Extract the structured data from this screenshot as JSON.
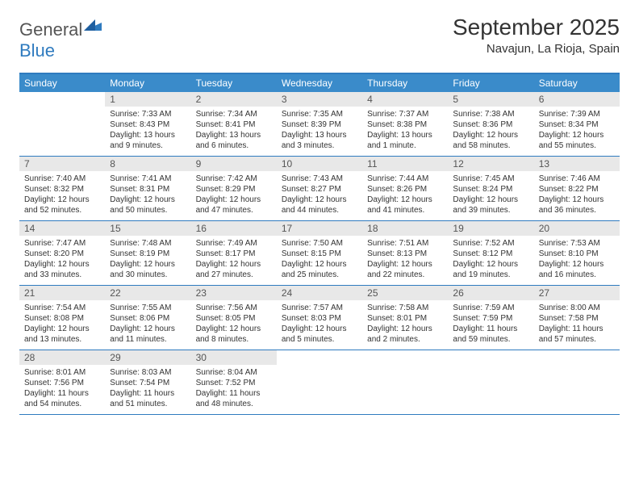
{
  "logo": {
    "text_dark": "General",
    "text_blue": "Blue"
  },
  "title": "September 2025",
  "location": "Navajun, La Rioja, Spain",
  "colors": {
    "header_bar": "#3a8bca",
    "top_border": "#2f7bbf",
    "daynum_bg": "#e8e8e8",
    "week_border": "#2f7bbf"
  },
  "day_headers": [
    "Sunday",
    "Monday",
    "Tuesday",
    "Wednesday",
    "Thursday",
    "Friday",
    "Saturday"
  ],
  "weeks": [
    [
      {
        "n": "",
        "sr": "",
        "ss": "",
        "dl": ""
      },
      {
        "n": "1",
        "sr": "Sunrise: 7:33 AM",
        "ss": "Sunset: 8:43 PM",
        "dl": "Daylight: 13 hours and 9 minutes."
      },
      {
        "n": "2",
        "sr": "Sunrise: 7:34 AM",
        "ss": "Sunset: 8:41 PM",
        "dl": "Daylight: 13 hours and 6 minutes."
      },
      {
        "n": "3",
        "sr": "Sunrise: 7:35 AM",
        "ss": "Sunset: 8:39 PM",
        "dl": "Daylight: 13 hours and 3 minutes."
      },
      {
        "n": "4",
        "sr": "Sunrise: 7:37 AM",
        "ss": "Sunset: 8:38 PM",
        "dl": "Daylight: 13 hours and 1 minute."
      },
      {
        "n": "5",
        "sr": "Sunrise: 7:38 AM",
        "ss": "Sunset: 8:36 PM",
        "dl": "Daylight: 12 hours and 58 minutes."
      },
      {
        "n": "6",
        "sr": "Sunrise: 7:39 AM",
        "ss": "Sunset: 8:34 PM",
        "dl": "Daylight: 12 hours and 55 minutes."
      }
    ],
    [
      {
        "n": "7",
        "sr": "Sunrise: 7:40 AM",
        "ss": "Sunset: 8:32 PM",
        "dl": "Daylight: 12 hours and 52 minutes."
      },
      {
        "n": "8",
        "sr": "Sunrise: 7:41 AM",
        "ss": "Sunset: 8:31 PM",
        "dl": "Daylight: 12 hours and 50 minutes."
      },
      {
        "n": "9",
        "sr": "Sunrise: 7:42 AM",
        "ss": "Sunset: 8:29 PM",
        "dl": "Daylight: 12 hours and 47 minutes."
      },
      {
        "n": "10",
        "sr": "Sunrise: 7:43 AM",
        "ss": "Sunset: 8:27 PM",
        "dl": "Daylight: 12 hours and 44 minutes."
      },
      {
        "n": "11",
        "sr": "Sunrise: 7:44 AM",
        "ss": "Sunset: 8:26 PM",
        "dl": "Daylight: 12 hours and 41 minutes."
      },
      {
        "n": "12",
        "sr": "Sunrise: 7:45 AM",
        "ss": "Sunset: 8:24 PM",
        "dl": "Daylight: 12 hours and 39 minutes."
      },
      {
        "n": "13",
        "sr": "Sunrise: 7:46 AM",
        "ss": "Sunset: 8:22 PM",
        "dl": "Daylight: 12 hours and 36 minutes."
      }
    ],
    [
      {
        "n": "14",
        "sr": "Sunrise: 7:47 AM",
        "ss": "Sunset: 8:20 PM",
        "dl": "Daylight: 12 hours and 33 minutes."
      },
      {
        "n": "15",
        "sr": "Sunrise: 7:48 AM",
        "ss": "Sunset: 8:19 PM",
        "dl": "Daylight: 12 hours and 30 minutes."
      },
      {
        "n": "16",
        "sr": "Sunrise: 7:49 AM",
        "ss": "Sunset: 8:17 PM",
        "dl": "Daylight: 12 hours and 27 minutes."
      },
      {
        "n": "17",
        "sr": "Sunrise: 7:50 AM",
        "ss": "Sunset: 8:15 PM",
        "dl": "Daylight: 12 hours and 25 minutes."
      },
      {
        "n": "18",
        "sr": "Sunrise: 7:51 AM",
        "ss": "Sunset: 8:13 PM",
        "dl": "Daylight: 12 hours and 22 minutes."
      },
      {
        "n": "19",
        "sr": "Sunrise: 7:52 AM",
        "ss": "Sunset: 8:12 PM",
        "dl": "Daylight: 12 hours and 19 minutes."
      },
      {
        "n": "20",
        "sr": "Sunrise: 7:53 AM",
        "ss": "Sunset: 8:10 PM",
        "dl": "Daylight: 12 hours and 16 minutes."
      }
    ],
    [
      {
        "n": "21",
        "sr": "Sunrise: 7:54 AM",
        "ss": "Sunset: 8:08 PM",
        "dl": "Daylight: 12 hours and 13 minutes."
      },
      {
        "n": "22",
        "sr": "Sunrise: 7:55 AM",
        "ss": "Sunset: 8:06 PM",
        "dl": "Daylight: 12 hours and 11 minutes."
      },
      {
        "n": "23",
        "sr": "Sunrise: 7:56 AM",
        "ss": "Sunset: 8:05 PM",
        "dl": "Daylight: 12 hours and 8 minutes."
      },
      {
        "n": "24",
        "sr": "Sunrise: 7:57 AM",
        "ss": "Sunset: 8:03 PM",
        "dl": "Daylight: 12 hours and 5 minutes."
      },
      {
        "n": "25",
        "sr": "Sunrise: 7:58 AM",
        "ss": "Sunset: 8:01 PM",
        "dl": "Daylight: 12 hours and 2 minutes."
      },
      {
        "n": "26",
        "sr": "Sunrise: 7:59 AM",
        "ss": "Sunset: 7:59 PM",
        "dl": "Daylight: 11 hours and 59 minutes."
      },
      {
        "n": "27",
        "sr": "Sunrise: 8:00 AM",
        "ss": "Sunset: 7:58 PM",
        "dl": "Daylight: 11 hours and 57 minutes."
      }
    ],
    [
      {
        "n": "28",
        "sr": "Sunrise: 8:01 AM",
        "ss": "Sunset: 7:56 PM",
        "dl": "Daylight: 11 hours and 54 minutes."
      },
      {
        "n": "29",
        "sr": "Sunrise: 8:03 AM",
        "ss": "Sunset: 7:54 PM",
        "dl": "Daylight: 11 hours and 51 minutes."
      },
      {
        "n": "30",
        "sr": "Sunrise: 8:04 AM",
        "ss": "Sunset: 7:52 PM",
        "dl": "Daylight: 11 hours and 48 minutes."
      },
      {
        "n": "",
        "sr": "",
        "ss": "",
        "dl": ""
      },
      {
        "n": "",
        "sr": "",
        "ss": "",
        "dl": ""
      },
      {
        "n": "",
        "sr": "",
        "ss": "",
        "dl": ""
      },
      {
        "n": "",
        "sr": "",
        "ss": "",
        "dl": ""
      }
    ]
  ]
}
